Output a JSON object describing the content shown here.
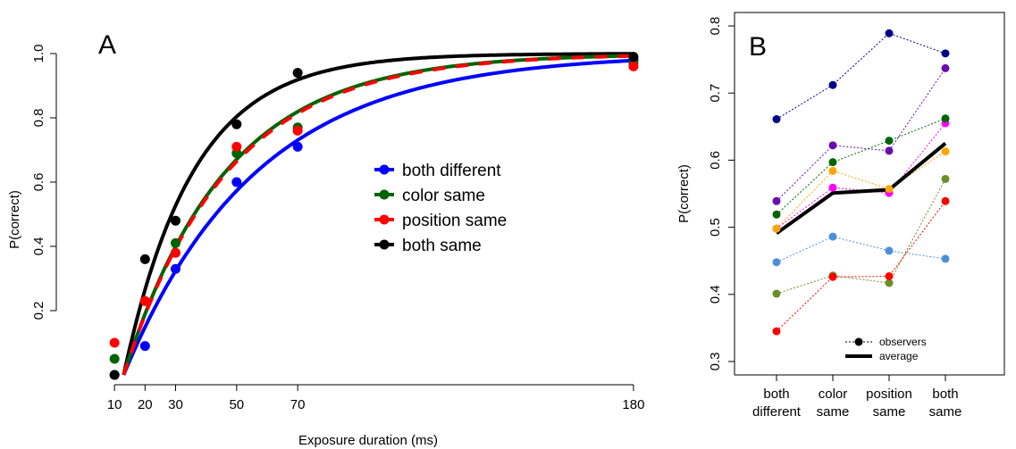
{
  "chart_data": [
    {
      "type": "scatter",
      "panel_label": "A",
      "xlabel": "Exposure duration (ms)",
      "ylabel": "P(correct)",
      "x_ticks": [
        10,
        20,
        30,
        50,
        70,
        180
      ],
      "y_ticks": [
        "0.2",
        "0.4",
        "0.6",
        "0.8",
        "1.0"
      ],
      "xlim": [
        0,
        185
      ],
      "ylim": [
        0,
        1.05
      ],
      "grid": false,
      "legend_position": "center-right",
      "series": [
        {
          "name": "both different",
          "color": "#0000ff",
          "line_style": "solid",
          "x": [
            10,
            20,
            30,
            50,
            70,
            180
          ],
          "y": [
            0.0,
            0.09,
            0.33,
            0.6,
            0.71,
            0.98
          ]
        },
        {
          "name": "color same",
          "color": "#006400",
          "line_style": "dashed",
          "x": [
            10,
            20,
            30,
            50,
            70,
            180
          ],
          "y": [
            0.05,
            0.23,
            0.41,
            0.69,
            0.77,
            0.97
          ]
        },
        {
          "name": "position same",
          "color": "#ff0000",
          "line_style": "dashed",
          "x": [
            10,
            20,
            30,
            50,
            70,
            180
          ],
          "y": [
            0.1,
            0.23,
            0.38,
            0.71,
            0.76,
            0.96
          ]
        },
        {
          "name": "both same",
          "color": "#000000",
          "line_style": "solid",
          "x": [
            10,
            20,
            30,
            50,
            70,
            180
          ],
          "y": [
            0.0,
            0.36,
            0.48,
            0.78,
            0.94,
            0.99
          ]
        }
      ]
    },
    {
      "type": "line",
      "panel_label": "B",
      "ylabel": "P(correct)",
      "categories": [
        [
          "both",
          "different"
        ],
        [
          "color",
          "same"
        ],
        [
          "position",
          "same"
        ],
        [
          "both",
          "same"
        ]
      ],
      "y_ticks": [
        "0.3",
        "0.4",
        "0.5",
        "0.6",
        "0.7",
        "0.8"
      ],
      "ylim": [
        0.28,
        0.82
      ],
      "grid": false,
      "legend_position": "bottom-center",
      "legend": {
        "observers": "observers",
        "average": "average"
      },
      "series": [
        {
          "color": "#00008b",
          "values": [
            0.661,
            0.712,
            0.789,
            0.759
          ]
        },
        {
          "color": "#6a0dad",
          "values": [
            0.539,
            0.622,
            0.614,
            0.737
          ]
        },
        {
          "color": "#ff00ff",
          "values": [
            0.498,
            0.559,
            0.551,
            0.655
          ]
        },
        {
          "color": "#006400",
          "values": [
            0.519,
            0.597,
            0.629,
            0.662
          ]
        },
        {
          "color": "#ffa500",
          "values": [
            0.498,
            0.584,
            0.557,
            0.613
          ]
        },
        {
          "color": "#4a90d9",
          "values": [
            0.448,
            0.486,
            0.465,
            0.453
          ]
        },
        {
          "color": "#6b8e23",
          "values": [
            0.401,
            0.428,
            0.417,
            0.572
          ]
        },
        {
          "color": "#ff0000",
          "values": [
            0.345,
            0.426,
            0.427,
            0.539
          ]
        }
      ],
      "average": {
        "name": "average",
        "values": [
          0.491,
          0.551,
          0.556,
          0.625
        ]
      }
    }
  ]
}
